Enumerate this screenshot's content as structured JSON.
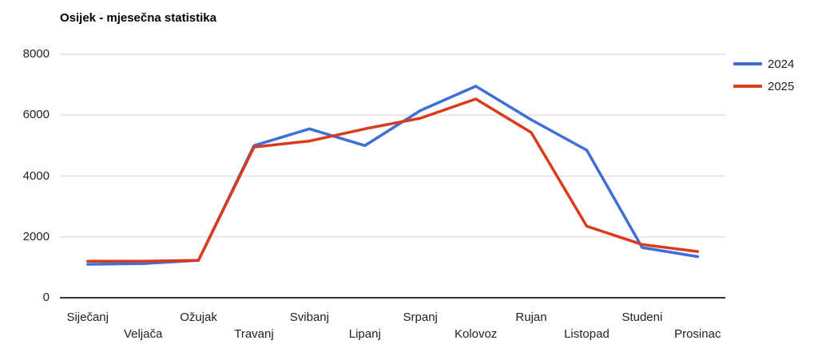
{
  "title": "Osijek - mjesečna statistika",
  "legend": {
    "items": [
      {
        "label": "2024",
        "color": "#3D6FD6"
      },
      {
        "label": "2025",
        "color": "#DB3B1C"
      }
    ]
  },
  "chart_data": {
    "type": "line",
    "title": "Osijek - mjesečna statistika",
    "categories": [
      "Siječanj",
      "Veljača",
      "Ožujak",
      "Travanj",
      "Svibanj",
      "Lipanj",
      "Srpanj",
      "Kolovoz",
      "Rujan",
      "Listopad",
      "Studeni",
      "Prosinac"
    ],
    "series": [
      {
        "name": "2024",
        "color": "#3D6FD6",
        "values": [
          1100,
          1120,
          1230,
          5000,
          5550,
          5000,
          6150,
          6950,
          5850,
          4850,
          1650,
          1350
        ]
      },
      {
        "name": "2025",
        "color": "#DB3B1C",
        "values": [
          1200,
          1200,
          1230,
          4950,
          5150,
          5550,
          5900,
          6530,
          5430,
          2350,
          1750,
          1520
        ]
      }
    ],
    "xlabel": "",
    "ylabel": "",
    "ylim": [
      0,
      8000
    ],
    "yticks": [
      0,
      2000,
      4000,
      6000,
      8000
    ],
    "grid": true,
    "legend_position": "right",
    "colors": {
      "gridline": "#e2e2e2",
      "axis": "#333333",
      "text": "#222222"
    }
  }
}
